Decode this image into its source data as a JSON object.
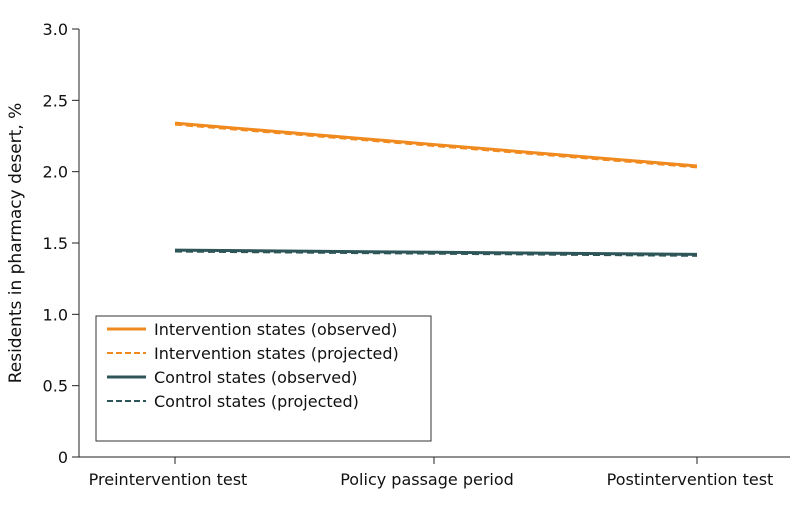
{
  "chart_data": {
    "type": "line",
    "title": "",
    "xlabel": "",
    "ylabel": "Residents in pharmacy desert, %",
    "categories": [
      "Preintervention test",
      "Policy passage period",
      "Postintervention test"
    ],
    "ylim": [
      0,
      3.0
    ],
    "yticks": [
      0,
      0.5,
      1.0,
      1.5,
      2.0,
      2.5,
      3.0
    ],
    "ytick_labels": [
      "0",
      "0.5",
      "1.0",
      "1.5",
      "2.0",
      "2.5",
      "3.0"
    ],
    "grid": false,
    "legend_position": "bottom-left",
    "series": [
      {
        "name": "Intervention states (observed)",
        "values": [
          2.34,
          2.19,
          2.04
        ],
        "color": "#f08a1e",
        "style": "solid"
      },
      {
        "name": "Intervention states (projected)",
        "values": [
          2.33,
          2.18,
          2.03
        ],
        "color": "#f08a1e",
        "style": "dashed"
      },
      {
        "name": "Control states (observed)",
        "values": [
          1.45,
          1.435,
          1.42
        ],
        "color": "#2e5658",
        "style": "solid"
      },
      {
        "name": "Control states (projected)",
        "values": [
          1.44,
          1.425,
          1.41
        ],
        "color": "#2e5658",
        "style": "dashed"
      }
    ]
  }
}
